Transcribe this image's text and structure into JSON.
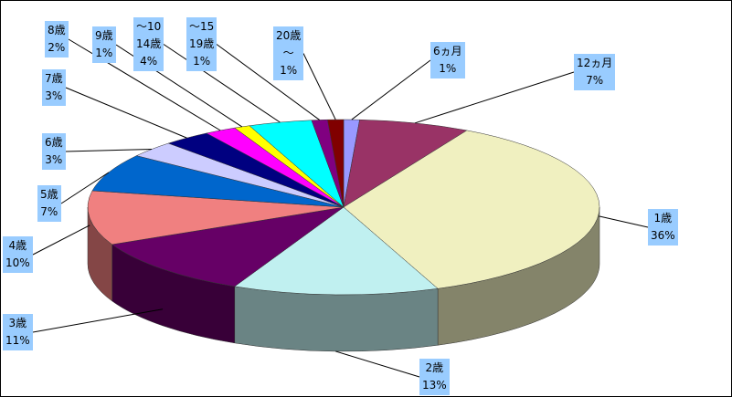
{
  "chart_data": {
    "type": "pie3d",
    "categories": [
      "6ヵ月",
      "12ヵ月",
      "1歳",
      "2歳",
      "3歳",
      "4歳",
      "5歳",
      "6歳",
      "7歳",
      "8歳",
      "9歳",
      "～10\n14歳",
      "～15\n19歳",
      "20歳\n～"
    ],
    "values": [
      1,
      7,
      36,
      13,
      11,
      10,
      7,
      3,
      3,
      2,
      1,
      4,
      1,
      1
    ],
    "value_labels": [
      "1%",
      "7%",
      "36%",
      "13%",
      "11%",
      "10%",
      "7%",
      "3%",
      "3%",
      "2%",
      "1%",
      "4%",
      "1%",
      "1%"
    ],
    "colors": [
      "#9999ff",
      "#993366",
      "#f0f0c0",
      "#c0f0f0",
      "#660066",
      "#f08080",
      "#0066cc",
      "#ccccff",
      "#000080",
      "#ff00ff",
      "#ffff00",
      "#00ffff",
      "#800080",
      "#800000"
    ]
  }
}
